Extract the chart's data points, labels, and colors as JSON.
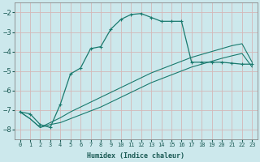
{
  "xlabel": "Humidex (Indice chaleur)",
  "bg_color": "#cce8ec",
  "grid_color": "#b0d0d8",
  "line_color": "#1a7a6e",
  "xlim": [
    -0.5,
    23.5
  ],
  "ylim": [
    -8.5,
    -1.5
  ],
  "yticks": [
    -8,
    -7,
    -6,
    -5,
    -4,
    -3,
    -2
  ],
  "xticks": [
    0,
    1,
    2,
    3,
    4,
    5,
    6,
    7,
    8,
    9,
    10,
    11,
    12,
    13,
    14,
    15,
    16,
    17,
    18,
    19,
    20,
    21,
    22,
    23
  ],
  "curve1_x": [
    0,
    1,
    2,
    3,
    4,
    5,
    6,
    7,
    8,
    9,
    10,
    11,
    12,
    13,
    14,
    15,
    16,
    17,
    18,
    19,
    20,
    21,
    22,
    23
  ],
  "curve1_y": [
    -7.1,
    -7.2,
    -7.75,
    -7.9,
    -6.7,
    -5.15,
    -4.85,
    -3.85,
    -3.75,
    -2.85,
    -2.35,
    -2.1,
    -2.05,
    -2.25,
    -2.45,
    -2.45,
    -2.45,
    -4.55,
    -4.55,
    -4.55,
    -4.55,
    -4.6,
    -4.65,
    -4.65
  ],
  "curve2_x": [
    0,
    2,
    23
  ],
  "curve2_y": [
    -7.1,
    -7.9,
    -4.55
  ],
  "curve3_x": [
    0,
    2,
    23
  ],
  "curve3_y": [
    -7.1,
    -7.9,
    -4.8
  ],
  "curve2_full_x": [
    0,
    1,
    2,
    3,
    4,
    5,
    6,
    7,
    8,
    9,
    10,
    11,
    12,
    13,
    14,
    15,
    16,
    17,
    18,
    19,
    20,
    21,
    22,
    23
  ],
  "curve2_full_y": [
    -7.1,
    -7.45,
    -7.9,
    -7.65,
    -7.4,
    -7.1,
    -6.85,
    -6.6,
    -6.35,
    -6.1,
    -5.85,
    -5.6,
    -5.35,
    -5.1,
    -4.9,
    -4.7,
    -4.5,
    -4.3,
    -4.15,
    -4.0,
    -3.85,
    -3.7,
    -3.6,
    -4.55
  ],
  "curve3_full_x": [
    0,
    1,
    2,
    3,
    4,
    5,
    6,
    7,
    8,
    9,
    10,
    11,
    12,
    13,
    14,
    15,
    16,
    17,
    18,
    19,
    20,
    21,
    22,
    23
  ],
  "curve3_full_y": [
    -7.1,
    -7.45,
    -7.9,
    -7.75,
    -7.65,
    -7.45,
    -7.25,
    -7.05,
    -6.85,
    -6.6,
    -6.35,
    -6.1,
    -5.85,
    -5.6,
    -5.4,
    -5.2,
    -5.0,
    -4.8,
    -4.65,
    -4.5,
    -4.35,
    -4.22,
    -4.1,
    -4.8
  ]
}
